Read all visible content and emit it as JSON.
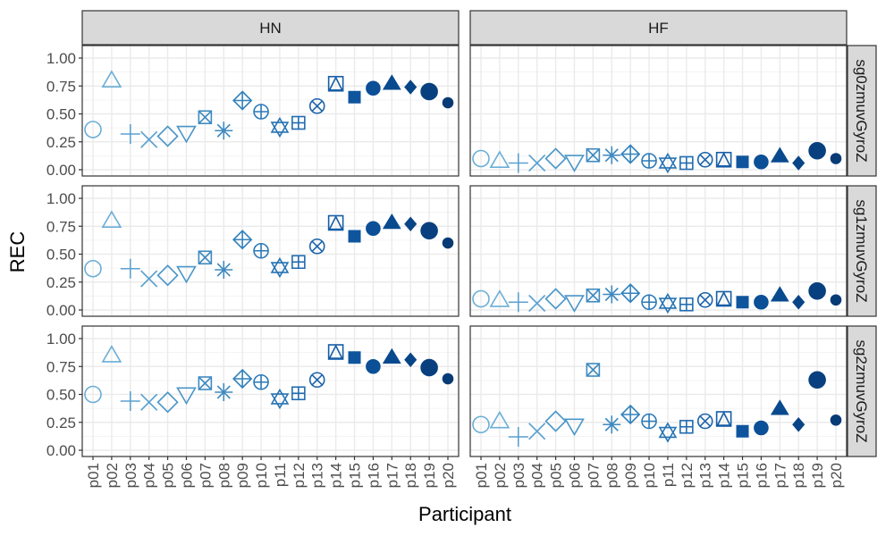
{
  "chart_data": {
    "type": "scatter",
    "xlabel": "Participant",
    "ylabel": "REC",
    "ylim": [
      0,
      1
    ],
    "yticks": [
      "0.00",
      "0.25",
      "0.50",
      "0.75",
      "1.00"
    ],
    "grid": true,
    "legend": "none",
    "categories": [
      "p01",
      "p02",
      "p03",
      "p04",
      "p05",
      "p06",
      "p07",
      "p08",
      "p09",
      "p10",
      "p11",
      "p12",
      "p13",
      "p14",
      "p15",
      "p16",
      "p17",
      "p18",
      "p19",
      "p20"
    ],
    "columns": [
      "HN",
      "HF"
    ],
    "rows": [
      "sg0zmuvGyroZ",
      "sg1zmuvGyroZ",
      "sg2zmuvGyroZ"
    ],
    "shapes": [
      "open-circle",
      "open-triangle",
      "plus",
      "cross",
      "open-diamond",
      "open-triangle-down",
      "square-cross",
      "asterisk",
      "diamond-plus",
      "circle-plus",
      "triangles-up-down",
      "square-plus",
      "circle-cross",
      "square-triangle",
      "filled-square",
      "filled-circle",
      "filled-triangle",
      "filled-diamond",
      "large-filled-circle",
      "small-filled-circle"
    ],
    "colors": [
      "#6baed6",
      "#6baed6",
      "#5aa1cf",
      "#5aa1cf",
      "#4b96c8",
      "#4b96c8",
      "#3f8ac0",
      "#3f8ac0",
      "#3282bd",
      "#2b79b8",
      "#2673b4",
      "#226cb0",
      "#1c64ab",
      "#175da6",
      "#0f559e",
      "#0b4f96",
      "#094a8e",
      "#084586",
      "#08407f",
      "#083b76"
    ],
    "panels": [
      {
        "row": "sg0zmuvGyroZ",
        "col": "HN",
        "values": [
          0.36,
          0.8,
          0.32,
          0.27,
          0.3,
          0.33,
          0.47,
          0.35,
          0.62,
          0.52,
          0.38,
          0.42,
          0.57,
          0.77,
          0.65,
          0.73,
          0.77,
          0.74,
          0.7,
          0.6
        ]
      },
      {
        "row": "sg0zmuvGyroZ",
        "col": "HF",
        "values": [
          0.1,
          0.08,
          0.06,
          0.06,
          0.1,
          0.07,
          0.13,
          0.13,
          0.14,
          0.08,
          0.06,
          0.06,
          0.09,
          0.09,
          0.07,
          0.07,
          0.12,
          0.06,
          0.17,
          0.1
        ]
      },
      {
        "row": "sg1zmuvGyroZ",
        "col": "HN",
        "values": [
          0.37,
          0.8,
          0.37,
          0.28,
          0.31,
          0.33,
          0.47,
          0.36,
          0.63,
          0.53,
          0.38,
          0.43,
          0.57,
          0.78,
          0.66,
          0.73,
          0.78,
          0.77,
          0.71,
          0.6
        ]
      },
      {
        "row": "sg1zmuvGyroZ",
        "col": "HF",
        "values": [
          0.1,
          0.09,
          0.07,
          0.06,
          0.1,
          0.07,
          0.13,
          0.14,
          0.15,
          0.07,
          0.06,
          0.05,
          0.09,
          0.1,
          0.07,
          0.07,
          0.13,
          0.07,
          0.17,
          0.09
        ]
      },
      {
        "row": "sg2zmuvGyroZ",
        "col": "HN",
        "values": [
          0.5,
          0.85,
          0.44,
          0.43,
          0.43,
          0.5,
          0.6,
          0.52,
          0.64,
          0.61,
          0.46,
          0.51,
          0.63,
          0.88,
          0.83,
          0.75,
          0.83,
          0.81,
          0.74,
          0.64
        ]
      },
      {
        "row": "sg2zmuvGyroZ",
        "col": "HF",
        "values": [
          0.23,
          0.26,
          0.12,
          0.17,
          0.26,
          0.22,
          0.72,
          0.23,
          0.32,
          0.26,
          0.16,
          0.21,
          0.26,
          0.28,
          0.17,
          0.2,
          0.37,
          0.23,
          0.63,
          0.27
        ]
      }
    ]
  }
}
